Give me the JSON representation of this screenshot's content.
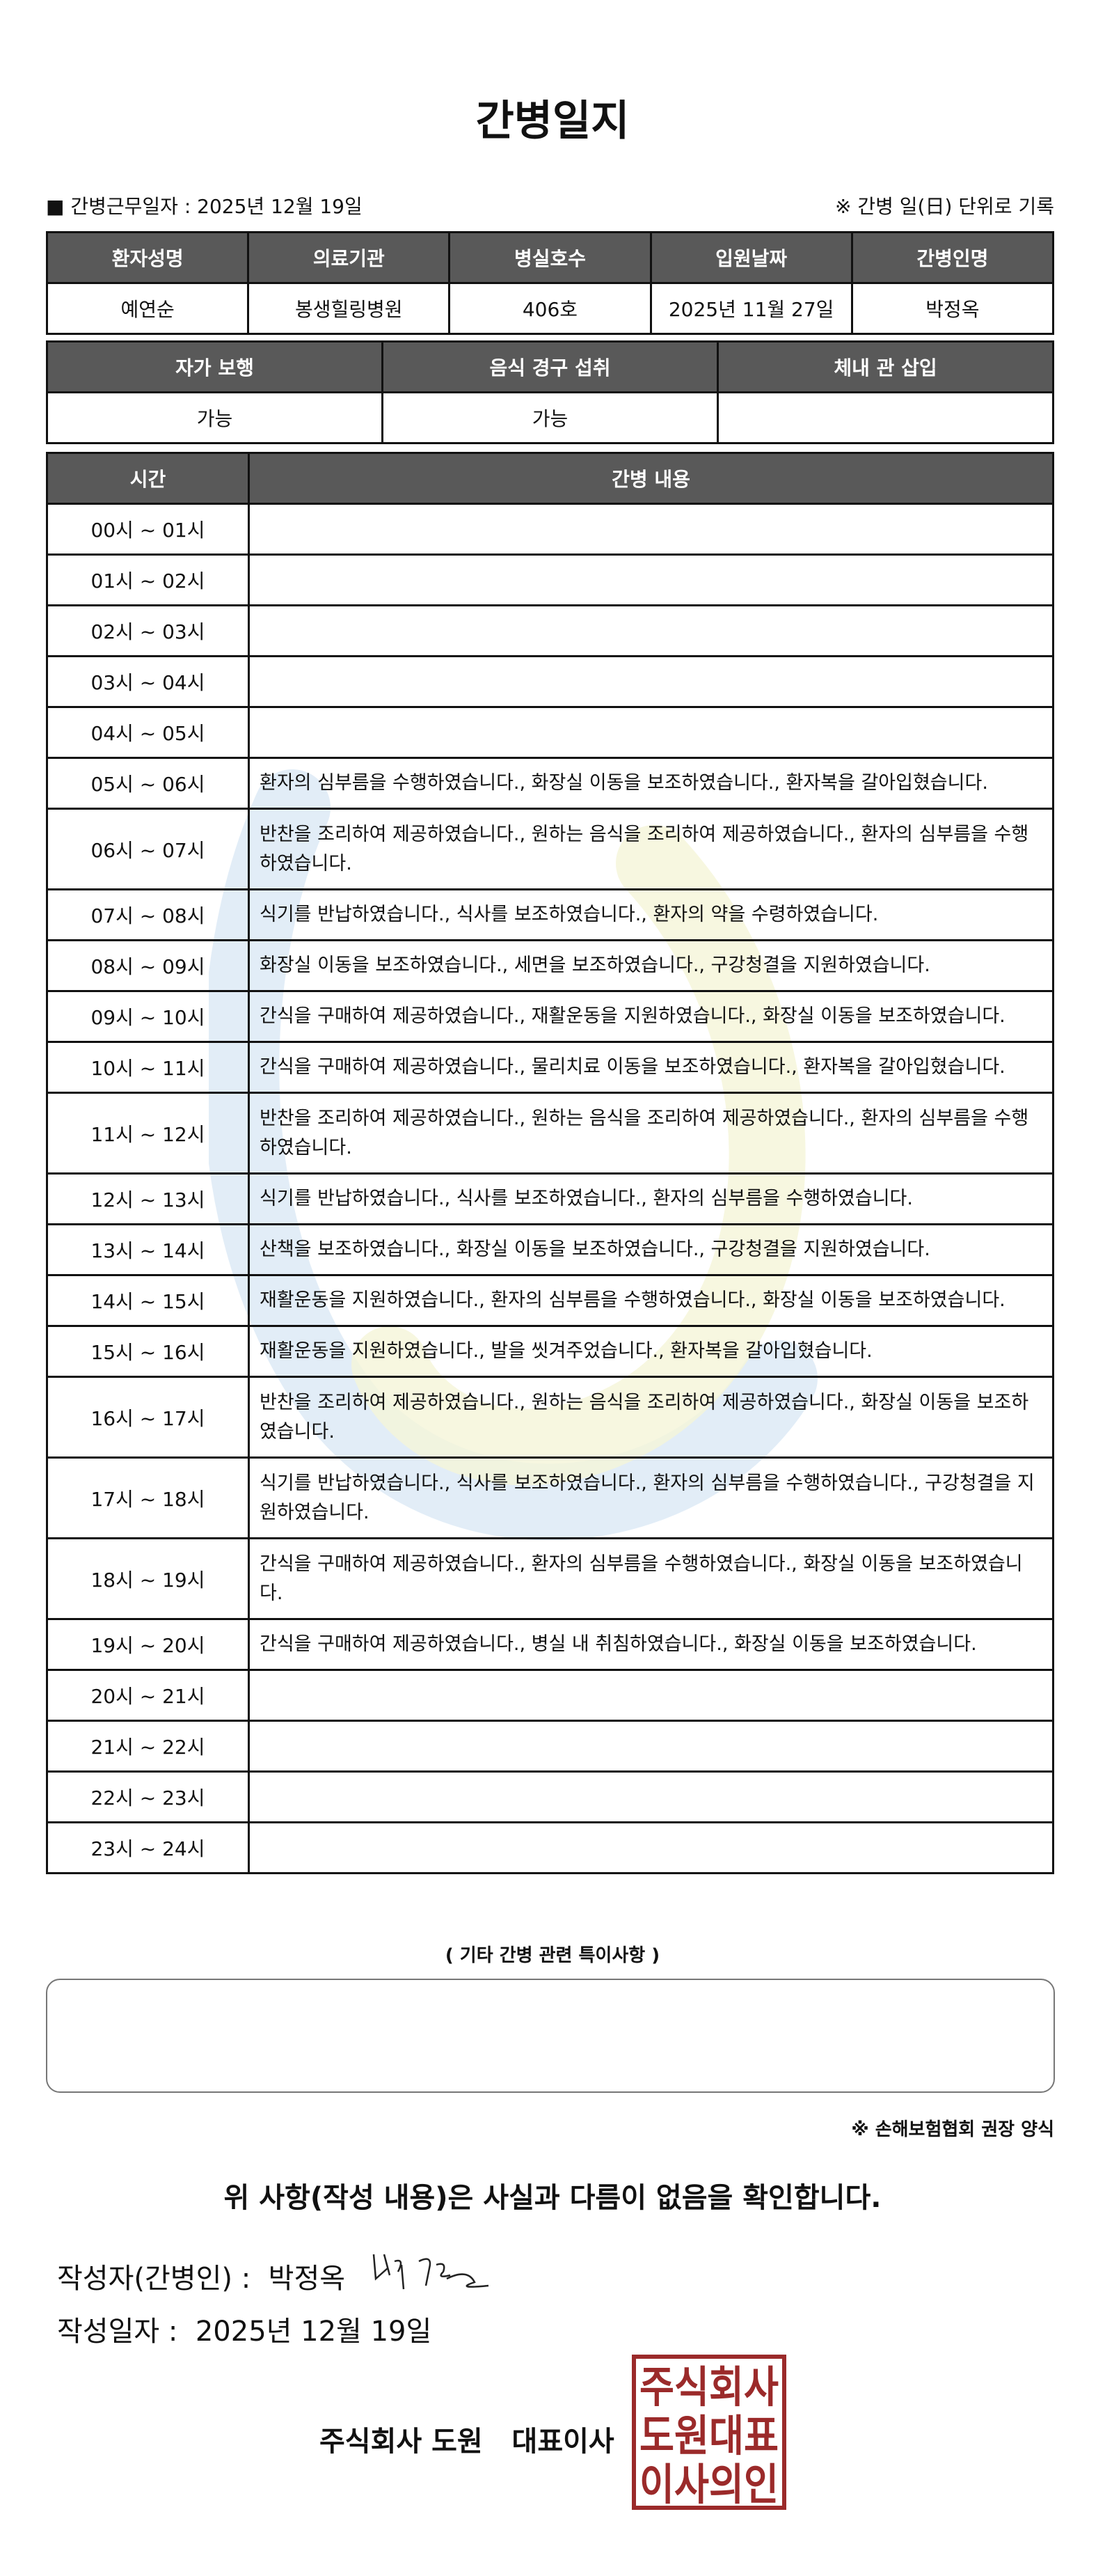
{
  "title": "간병일지",
  "info": {
    "work_date_label": "■ 간병근무일자 :  2025년 12월 19일",
    "note": "※ 간병 일(日) 단위로 기록"
  },
  "patient_table": {
    "headers": [
      "환자성명",
      "의료기관",
      "병실호수",
      "입원날짜",
      "간병인명"
    ],
    "values": [
      "예연순",
      "봉생힐링병원",
      "406호",
      "2025년 11월 27일",
      "박정옥"
    ]
  },
  "status_table": {
    "headers": [
      "자가 보행",
      "음식 경구 섭취",
      "체내 관 삽입"
    ],
    "values": [
      "가능",
      "가능",
      ""
    ]
  },
  "log_table": {
    "headers": [
      "시간",
      "간병 내용"
    ],
    "rows": [
      {
        "time": "00시 ~ 01시",
        "content": ""
      },
      {
        "time": "01시 ~ 02시",
        "content": ""
      },
      {
        "time": "02시 ~ 03시",
        "content": ""
      },
      {
        "time": "03시 ~ 04시",
        "content": ""
      },
      {
        "time": "04시 ~ 05시",
        "content": ""
      },
      {
        "time": "05시 ~ 06시",
        "content": "환자의 심부름을 수행하였습니다., 화장실 이동을 보조하였습니다., 환자복을 갈아입혔습니다."
      },
      {
        "time": "06시 ~ 07시",
        "content": "반찬을 조리하여 제공하였습니다., 원하는 음식을 조리하여 제공하였습니다., 환자의 심부름을 수행하였습니다."
      },
      {
        "time": "07시 ~ 08시",
        "content": "식기를 반납하였습니다., 식사를 보조하였습니다., 환자의 약을 수령하였습니다."
      },
      {
        "time": "08시 ~ 09시",
        "content": "화장실 이동을 보조하였습니다., 세면을 보조하였습니다., 구강청결을 지원하였습니다."
      },
      {
        "time": "09시 ~ 10시",
        "content": "간식을 구매하여 제공하였습니다., 재활운동을 지원하였습니다., 화장실 이동을 보조하였습니다."
      },
      {
        "time": "10시 ~ 11시",
        "content": "간식을 구매하여 제공하였습니다., 물리치료 이동을 보조하였습니다., 환자복을 갈아입혔습니다."
      },
      {
        "time": "11시 ~ 12시",
        "content": "반찬을 조리하여 제공하였습니다., 원하는 음식을 조리하여 제공하였습니다., 환자의 심부름을 수행하였습니다."
      },
      {
        "time": "12시 ~ 13시",
        "content": "식기를 반납하였습니다., 식사를 보조하였습니다., 환자의 심부름을 수행하였습니다."
      },
      {
        "time": "13시 ~ 14시",
        "content": "산책을 보조하였습니다., 화장실 이동을 보조하였습니다., 구강청결을 지원하였습니다."
      },
      {
        "time": "14시 ~ 15시",
        "content": "재활운동을 지원하였습니다., 환자의 심부름을 수행하였습니다., 화장실 이동을 보조하였습니다."
      },
      {
        "time": "15시 ~ 16시",
        "content": "재활운동을 지원하였습니다., 발을 씻겨주었습니다., 환자복을 갈아입혔습니다."
      },
      {
        "time": "16시 ~ 17시",
        "content": "반찬을 조리하여 제공하였습니다., 원하는 음식을 조리하여 제공하였습니다., 화장실 이동을 보조하였습니다."
      },
      {
        "time": "17시 ~ 18시",
        "content": "식기를 반납하였습니다., 식사를 보조하였습니다., 환자의 심부름을 수행하였습니다., 구강청결을 지원하였습니다."
      },
      {
        "time": "18시 ~ 19시",
        "content": "간식을 구매하여 제공하였습니다., 환자의 심부름을 수행하였습니다., 화장실 이동을 보조하였습니다."
      },
      {
        "time": "19시 ~ 20시",
        "content": "간식을 구매하여 제공하였습니다., 병실 내 취침하였습니다., 화장실 이동을 보조하였습니다."
      },
      {
        "time": "20시 ~ 21시",
        "content": ""
      },
      {
        "time": "21시 ~ 22시",
        "content": ""
      },
      {
        "time": "22시 ~ 23시",
        "content": ""
      },
      {
        "time": "23시 ~ 24시",
        "content": ""
      }
    ]
  },
  "notes": {
    "title": "( 기타 간병 관련 특이사항 )",
    "content": ""
  },
  "association_note": "※ 손해보험협회 권장 양식",
  "confirmation": "위 사항(작성 내용)은 사실과 다름이 없음을 확인합니다.",
  "writer": {
    "label": "작성자(간병인) :",
    "name": "박정옥"
  },
  "written_date": {
    "label": "작성일자 :",
    "value": "2025년 12월 19일"
  },
  "company": {
    "name": "주식회사 도원",
    "title": "대표이사"
  },
  "stamp": {
    "text": "주식회사도원대표이사의인",
    "color": "#9b2a2a"
  },
  "colors": {
    "header_bg": "#595959",
    "watermark_blue": "#dbe9f5",
    "watermark_yellow": "#f5f5d8"
  }
}
